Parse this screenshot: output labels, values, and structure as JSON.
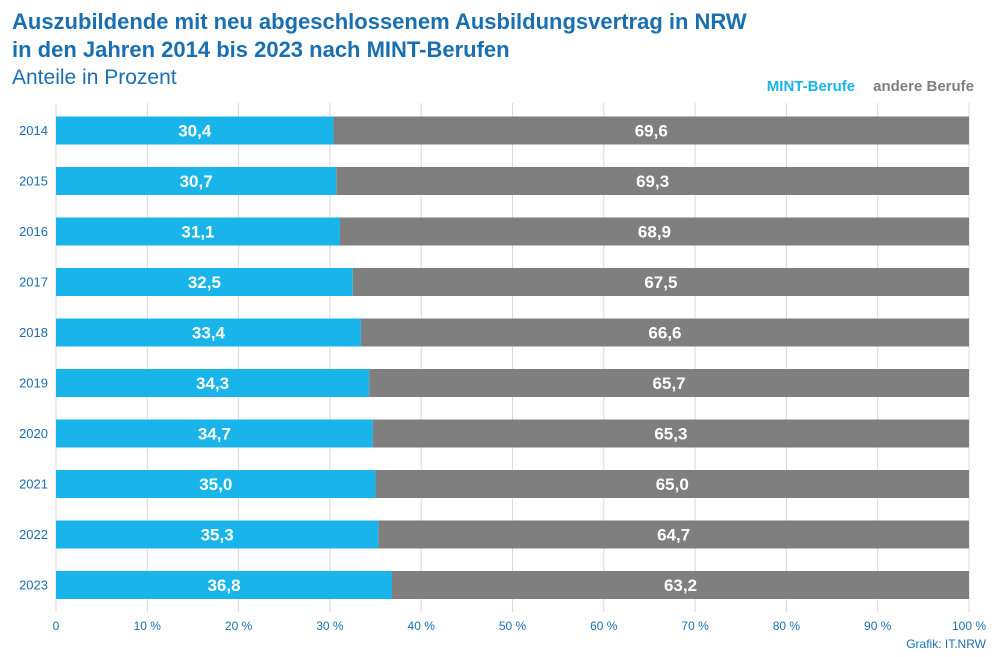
{
  "header": {
    "title_line1": "Auszubildende mit neu abgeschlossenem Ausbildungsvertrag in NRW",
    "title_line2": "in den Jahren 2014 bis 2023 nach MINT-Berufen",
    "subtitle": "Anteile in Prozent"
  },
  "legend": {
    "mint": "MINT-Berufe",
    "other": "andere Berufe"
  },
  "source": "Grafik: IT.NRW",
  "colors": {
    "mint": "#18b4ea",
    "other": "#7f7f7f",
    "grid": "#d9d9d9",
    "text": "#1a6fb0"
  },
  "chart_data": {
    "type": "bar",
    "orientation": "horizontal",
    "stacked": true,
    "categories": [
      "2014",
      "2015",
      "2016",
      "2017",
      "2018",
      "2019",
      "2020",
      "2021",
      "2022",
      "2023"
    ],
    "series": [
      {
        "name": "MINT-Berufe",
        "values": [
          30.4,
          30.7,
          31.1,
          32.5,
          33.4,
          34.3,
          34.7,
          35.0,
          35.3,
          36.8
        ],
        "labels": [
          "30,4",
          "30,7",
          "31,1",
          "32,5",
          "33,4",
          "34,3",
          "34,7",
          "35,0",
          "35,3",
          "36,8"
        ]
      },
      {
        "name": "andere Berufe",
        "values": [
          69.6,
          69.3,
          68.9,
          67.5,
          66.6,
          65.7,
          65.3,
          65.0,
          64.7,
          63.2
        ],
        "labels": [
          "69,6",
          "69,3",
          "68,9",
          "67,5",
          "66,6",
          "65,7",
          "65,3",
          "65,0",
          "64,7",
          "63,2"
        ]
      }
    ],
    "xlim": [
      0,
      100
    ],
    "xticks": [
      0,
      10,
      20,
      30,
      40,
      50,
      60,
      70,
      80,
      90,
      100
    ],
    "xtick_labels": [
      "0",
      "10 %",
      "20 %",
      "30 %",
      "40 %",
      "50 %",
      "60 %",
      "70 %",
      "80 %",
      "90 %",
      "100 %"
    ],
    "grid": true,
    "legend_position": "top-right"
  }
}
